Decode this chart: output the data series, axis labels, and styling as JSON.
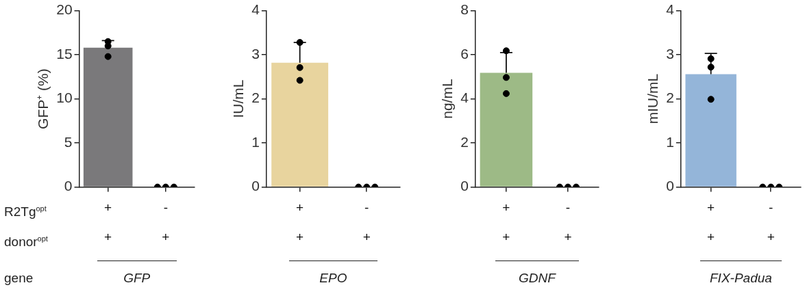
{
  "chart_data": [
    {
      "type": "bar",
      "categories": [
        "+\n+",
        "-\n+"
      ],
      "xlabel": "GFP",
      "ylabel": "GFP⁺ (%)",
      "ylim": [
        0,
        20
      ],
      "yticks": [
        0,
        5,
        10,
        15,
        20
      ],
      "grid": false,
      "legend": false,
      "marker": "circle",
      "annotations": [
        "R2Tg$^{opt}$",
        "donor$^{opt}$",
        "gene"
      ],
      "series": [
        {
          "color": "#7a797b",
          "values": [
            15.8,
            0
          ],
          "errors": [
            [
              15.8,
              16.6
            ],
            null
          ]
        },
        {
          "type": "scatter",
          "color": "#000000",
          "x": [
            "+\n+",
            "+\n+",
            "+\n+",
            "-\n+",
            "-\n+",
            "-\n+"
          ],
          "values": [
            16.5,
            16.0,
            14.8,
            0,
            0,
            0
          ]
        }
      ]
    },
    {
      "type": "bar",
      "categories": [
        "+\n+",
        "-\n+"
      ],
      "xlabel": "EPO",
      "ylabel": "IU/mL",
      "ylim": [
        0,
        4
      ],
      "yticks": [
        0,
        1,
        2,
        3,
        4
      ],
      "grid": false,
      "legend": false,
      "marker": "circle",
      "series": [
        {
          "color": "#e8d49e",
          "values": [
            2.82,
            0
          ],
          "errors": [
            [
              2.82,
              3.28
            ],
            null
          ]
        },
        {
          "type": "scatter",
          "color": "#000000",
          "x": [
            "+\n+",
            "+\n+",
            "+\n+",
            "-\n+",
            "-\n+",
            "-\n+"
          ],
          "values": [
            3.28,
            2.71,
            2.42,
            0,
            0,
            0
          ]
        }
      ]
    },
    {
      "type": "bar",
      "categories": [
        "+\n+",
        "-\n+"
      ],
      "xlabel": "GDNF",
      "ylabel": "ng/mL",
      "ylim": [
        0,
        8
      ],
      "yticks": [
        0,
        2,
        4,
        6,
        8
      ],
      "grid": false,
      "legend": false,
      "marker": "circle",
      "series": [
        {
          "color": "#9dba86",
          "values": [
            5.18,
            0
          ],
          "errors": [
            [
              5.18,
              6.1
            ],
            null
          ]
        },
        {
          "type": "scatter",
          "color": "#000000",
          "x": [
            "+\n+",
            "+\n+",
            "+\n+",
            "-\n+",
            "-\n+",
            "-\n+"
          ],
          "values": [
            6.18,
            4.97,
            4.24,
            0,
            0,
            0
          ]
        }
      ]
    },
    {
      "type": "bar",
      "categories": [
        "+\n+",
        "-\n+"
      ],
      "xlabel": "FIX-Padua",
      "ylabel": "mIU/mL",
      "ylim": [
        0,
        4
      ],
      "yticks": [
        0,
        1,
        2,
        3,
        4
      ],
      "grid": false,
      "legend": false,
      "marker": "circle",
      "series": [
        {
          "color": "#94b5d9",
          "values": [
            2.56,
            0
          ],
          "errors": [
            [
              2.56,
              3.03
            ],
            null
          ]
        },
        {
          "type": "scatter",
          "color": "#000000",
          "x": [
            "+\n+",
            "+\n+",
            "+\n+",
            "-\n+",
            "-\n+",
            "-\n+"
          ],
          "values": [
            2.91,
            2.72,
            1.99,
            0,
            0,
            0
          ]
        }
      ]
    }
  ]
}
